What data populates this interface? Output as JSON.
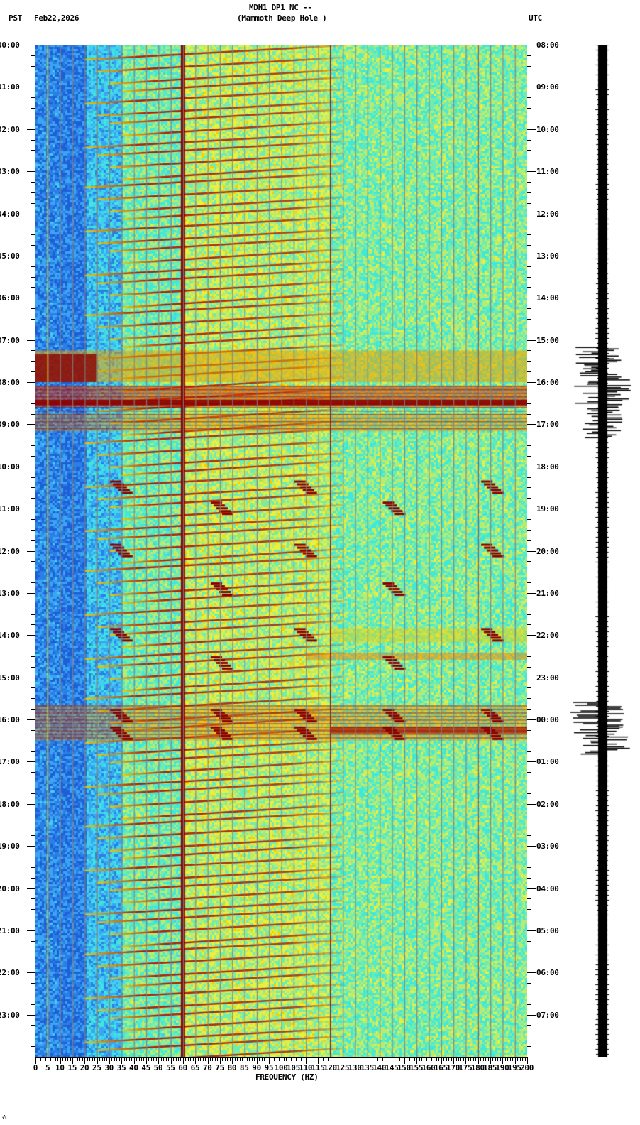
{
  "header": {
    "title": "MDH1 DP1 NC --",
    "subtitle": "(Mammoth Deep Hole )",
    "left_timezone": "PST",
    "date": "Feb22,2026",
    "right_timezone": "UTC"
  },
  "footer_mark": "√L",
  "colors": {
    "background": "#ffffff",
    "low": "#2a7fe6",
    "mid": "#40e0d0",
    "high": "#f5e000",
    "peak": "#8b0000",
    "gridline": "#808080"
  },
  "chart_data": {
    "type": "heatmap",
    "title": "MDH1 DP1 NC -- (Mammoth Deep Hole )",
    "xlabel": "FREQUENCY (HZ)",
    "ylabel_left": "PST",
    "ylabel_right": "UTC",
    "xlim": [
      0,
      200
    ],
    "x_ticks": [
      0,
      5,
      10,
      15,
      20,
      25,
      30,
      35,
      40,
      45,
      50,
      55,
      60,
      65,
      70,
      75,
      80,
      85,
      90,
      95,
      100,
      105,
      110,
      115,
      120,
      125,
      130,
      135,
      140,
      145,
      150,
      155,
      160,
      165,
      170,
      175,
      180,
      185,
      190,
      195,
      200
    ],
    "y_ticks_left": [
      "00:00",
      "01:00",
      "02:00",
      "03:00",
      "04:00",
      "05:00",
      "06:00",
      "07:00",
      "08:00",
      "09:00",
      "10:00",
      "11:00",
      "12:00",
      "13:00",
      "14:00",
      "15:00",
      "16:00",
      "17:00",
      "18:00",
      "19:00",
      "20:00",
      "21:00",
      "22:00",
      "23:00"
    ],
    "y_ticks_right": [
      "08:00",
      "09:00",
      "10:00",
      "11:00",
      "12:00",
      "13:00",
      "14:00",
      "15:00",
      "16:00",
      "17:00",
      "18:00",
      "19:00",
      "20:00",
      "21:00",
      "22:00",
      "23:00",
      "00:00",
      "01:00",
      "02:00",
      "03:00",
      "04:00",
      "05:00",
      "06:00",
      "07:00"
    ],
    "grid": true,
    "persistent_lines_hz": [
      5,
      60,
      120,
      180
    ],
    "broadband_events_pst": [
      {
        "start": "07:15",
        "end": "08:00",
        "intensity": "high"
      },
      {
        "start": "08:05",
        "end": "08:35",
        "intensity": "very high"
      },
      {
        "start": "08:45",
        "end": "09:10",
        "intensity": "high"
      },
      {
        "start": "13:50",
        "end": "14:10",
        "intensity": "medium"
      },
      {
        "start": "14:25",
        "end": "14:35",
        "intensity": "medium"
      },
      {
        "start": "15:40",
        "end": "16:30",
        "intensity": "high"
      }
    ],
    "noise_bursts_pst": [
      "10:20",
      "10:50",
      "11:50",
      "12:45",
      "13:50",
      "14:30",
      "15:45",
      "16:10"
    ],
    "seismogram": "helicorder trace at right, amplitude bursts 07:10-09:20 PST and 15:40-16:50 PST"
  }
}
